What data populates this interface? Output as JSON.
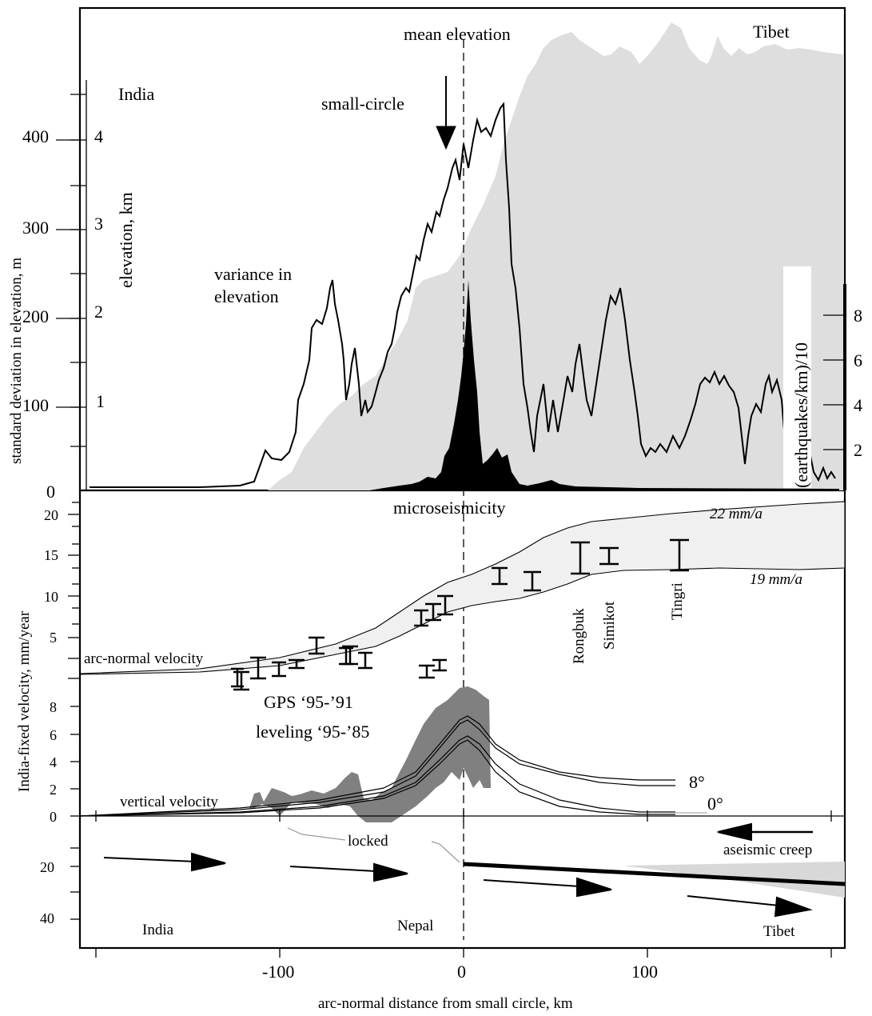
{
  "top_panel": {
    "label_tibet": "Tibet",
    "label_india": "India",
    "label_mean_elevation": "mean elevation",
    "label_small_circle": "small-circle",
    "label_variance_1": "variance in",
    "label_variance_2": "elevation",
    "label_microseismicity": "microseismicity",
    "axis_std_dev": "standard deviation in elevation, m",
    "axis_elevation": "elevation, km",
    "axis_earthquakes": "(earthquakes/km)/10",
    "std_dev_ticks": [
      "0",
      "100",
      "200",
      "300",
      "400"
    ],
    "elevation_ticks": [
      "1",
      "2",
      "3",
      "4"
    ],
    "earthquake_ticks": [
      "2",
      "4",
      "6",
      "8"
    ]
  },
  "middle_panel": {
    "axis_velocity": "India-fixed velocity, mm/year",
    "horizontal_ticks": [
      "5",
      "10",
      "15",
      "20"
    ],
    "vertical_ticks": [
      "0",
      "2",
      "4",
      "6",
      "8"
    ],
    "label_arc_normal": "arc-normal velocity",
    "label_vertical": "vertical velocity",
    "label_gps": "GPS ‘95-’91",
    "label_leveling": "leveling ‘95-’85",
    "rate_22": "22 mm/a",
    "rate_19": "19 mm/a",
    "station_rongbuk": "Rongbuk",
    "station_simikot": "Simikot",
    "station_tingri": "Tingri",
    "dip_8": "8°",
    "dip_0": "0°"
  },
  "bottom_panel": {
    "label_locked": "locked",
    "label_creep": "aseismic creep",
    "label_india": "India",
    "label_nepal": "Nepal",
    "label_tibet": "Tibet",
    "depth_ticks": [
      "20",
      "40"
    ]
  },
  "x_axis": {
    "title": "arc-normal distance from small circle, km",
    "ticks": [
      "-100",
      "0",
      "100"
    ]
  },
  "chart_data": {
    "type": "line",
    "xlabel": "arc-normal distance from small circle, km",
    "x_ticks": [
      -100,
      0,
      100
    ],
    "mean_elevation_km": {
      "x": [
        -100,
        -80,
        -60,
        -40,
        -20,
        0,
        20,
        40,
        60,
        80,
        100,
        120,
        140,
        160,
        180,
        200
      ],
      "y": [
        0.3,
        1.0,
        1.5,
        1.9,
        2.1,
        2.3,
        3.8,
        4.7,
        4.9,
        5.0,
        4.8,
        5.1,
        5.4,
        5.1,
        5.1,
        4.9
      ]
    },
    "variance_std_dev_m": {
      "x": [
        -200,
        -140,
        -120,
        -110,
        -100,
        -90,
        -85,
        -75,
        -60,
        -45,
        -35,
        -25,
        -10,
        0,
        10,
        20,
        30,
        40,
        60,
        80,
        100,
        120,
        140,
        160,
        180,
        200
      ],
      "y": [
        3,
        3,
        40,
        90,
        180,
        230,
        170,
        80,
        90,
        130,
        230,
        320,
        360,
        420,
        410,
        430,
        200,
        50,
        100,
        210,
        50,
        130,
        110,
        40,
        130,
        30
      ]
    },
    "microseismicity_eq_per_km_div10": {
      "x": [
        -40,
        -20,
        -10,
        0,
        5,
        10,
        20,
        30,
        60,
        100
      ],
      "y": [
        0.1,
        0.6,
        1.5,
        4.8,
        3.0,
        1.2,
        0.9,
        0.3,
        0.2,
        0.05
      ]
    },
    "arc_normal_velocity_mm_yr": {
      "x": [
        -200,
        -120,
        -80,
        -40,
        -20,
        0,
        20,
        40,
        60,
        80,
        120,
        200
      ],
      "y": [
        0.2,
        0.8,
        2.0,
        5.0,
        7.5,
        10.5,
        12.5,
        15.0,
        16.5,
        17.5,
        18.2,
        19.0
      ],
      "range_at_end": [
        19,
        22
      ]
    },
    "vertical_velocity_mm_yr": {
      "x": [
        -200,
        -100,
        -50,
        -20,
        0,
        20,
        40,
        60,
        80,
        100,
        130
      ],
      "y_dip_8": [
        0,
        0.5,
        1.2,
        3.5,
        7.0,
        5.0,
        3.8,
        3.0,
        2.8,
        2.6,
        2.5
      ],
      "y_dip_0": [
        0,
        0.3,
        0.8,
        2.5,
        5.8,
        3.5,
        2.0,
        1.0,
        0.5,
        0.2,
        0.1
      ]
    }
  }
}
